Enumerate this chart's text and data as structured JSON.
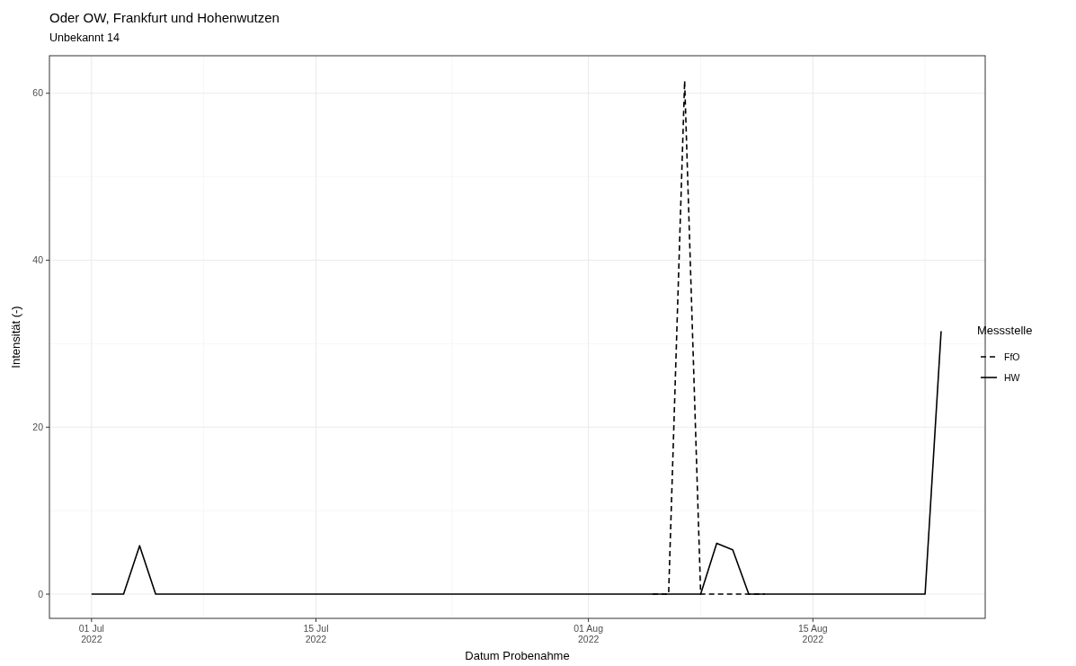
{
  "chart_data": {
    "type": "line",
    "title": "Oder OW, Frankfurt und Hohenwutzen",
    "subtitle": "Unbekannt 14",
    "xlabel": "Datum Probenahme",
    "ylabel": "Intensität (-)",
    "legend_title": "Messstelle",
    "legend": "right",
    "grid": true,
    "xlim": [
      "2022-06-28T09:00",
      "2022-08-25T18:00"
    ],
    "ylim": [
      -2.9,
      64.5
    ],
    "xticks": [
      {
        "value": "2022-07-01",
        "label": "01 Jul\n2022"
      },
      {
        "value": "2022-07-15",
        "label": "15 Jul\n2022"
      },
      {
        "value": "2022-08-01",
        "label": "01 Aug\n2022"
      },
      {
        "value": "2022-08-15",
        "label": "15 Aug\n2022"
      }
    ],
    "yticks": [
      0,
      20,
      40,
      60
    ],
    "series": [
      {
        "name": "FfO",
        "color": "#000000",
        "line_style": "dashed",
        "x": [
          "2022-08-05",
          "2022-08-06",
          "2022-08-07",
          "2022-08-08",
          "2022-08-09",
          "2022-08-10",
          "2022-08-11",
          "2022-08-12"
        ],
        "values": [
          0,
          0,
          61.5,
          0,
          0,
          0,
          0,
          0
        ]
      },
      {
        "name": "HW",
        "color": "#000000",
        "line_style": "solid",
        "x": [
          "2022-07-01",
          "2022-07-03",
          "2022-07-04",
          "2022-07-05",
          "2022-08-08",
          "2022-08-09",
          "2022-08-10",
          "2022-08-11",
          "2022-08-22",
          "2022-08-23"
        ],
        "values": [
          0,
          0,
          5.8,
          0,
          0,
          6.1,
          5.3,
          0,
          0,
          31.5
        ]
      }
    ]
  }
}
